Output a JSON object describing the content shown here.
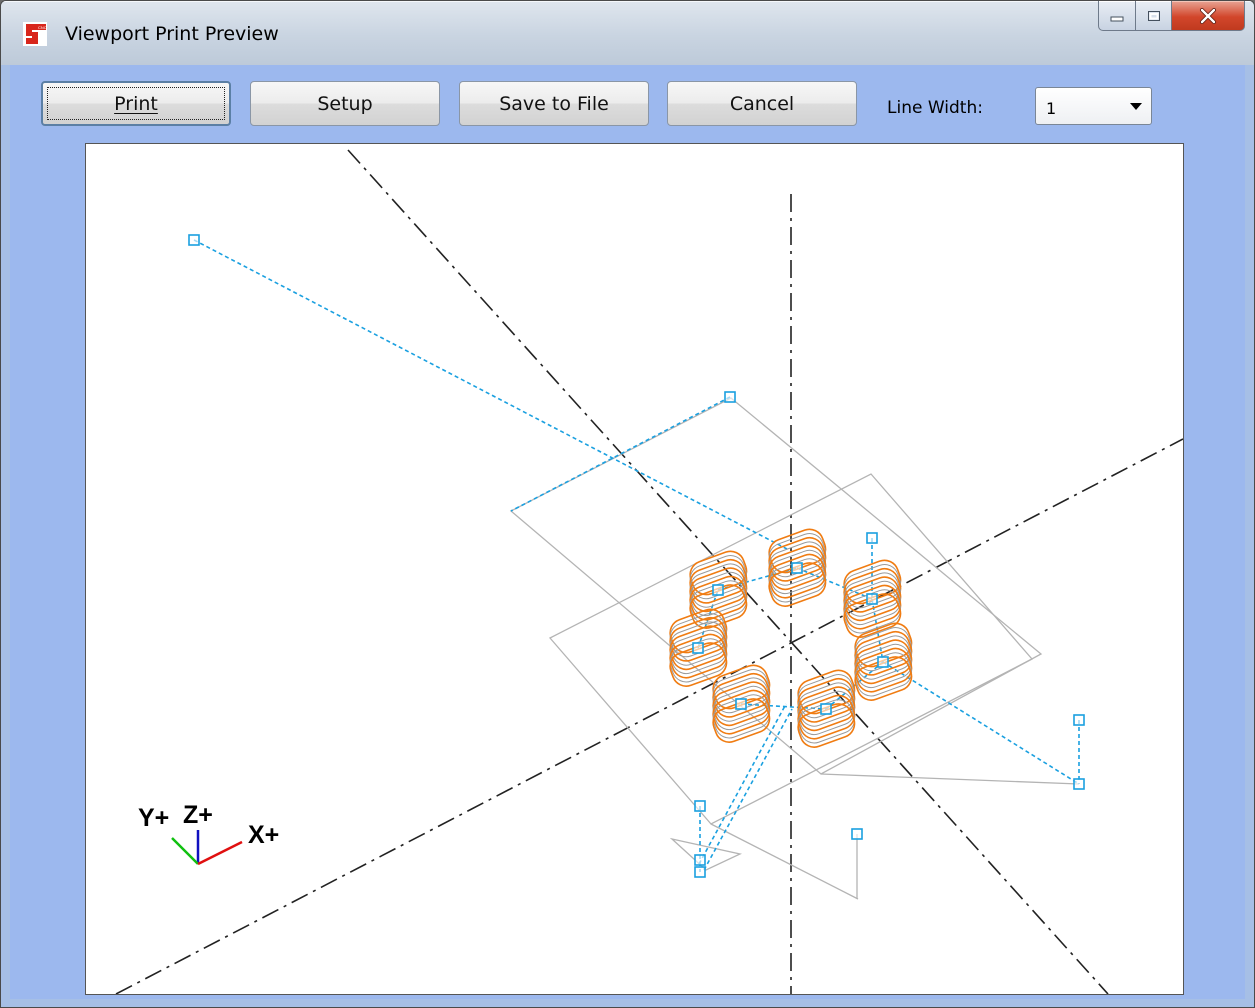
{
  "window": {
    "title": "Viewport Print Preview",
    "app_icon": "cnc-app-icon",
    "caption_buttons": [
      "minimize-icon",
      "maximize-icon",
      "close-icon"
    ]
  },
  "toolbar": {
    "print_label": "Print",
    "setup_label": "Setup",
    "save_label": "Save to File",
    "cancel_label": "Cancel",
    "line_width_label": "Line Width:",
    "line_width_value": "1"
  },
  "preview": {
    "axis_labels": {
      "y": "Y+",
      "z": "Z+",
      "x": "X+"
    },
    "colors": {
      "toolpath": "#f07c12",
      "rapid": "#1aa0e0",
      "stock": "#b4b4b4",
      "centerline": "#222222",
      "axis_x": "#e01010",
      "axis_y": "#10c010",
      "axis_z": "#1010c0"
    }
  }
}
